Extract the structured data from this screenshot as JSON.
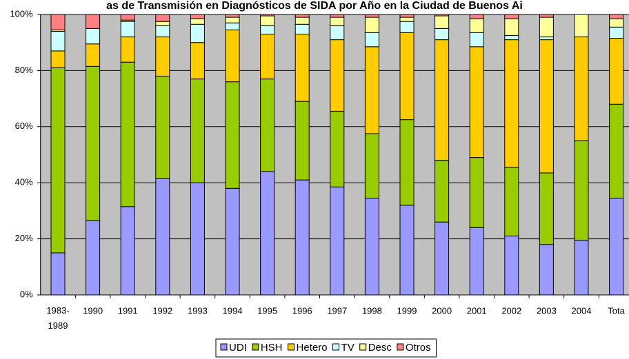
{
  "chart_data": {
    "type": "stacked_bar",
    "title": "as de Transmisión en Diagnósticos de SIDA por Año en la Ciudad de Buenos Ai",
    "categories": [
      "1983-1989",
      "1990",
      "1991",
      "1992",
      "1993",
      "1994",
      "1995",
      "1996",
      "1997",
      "1998",
      "1999",
      "2000",
      "2001",
      "2002",
      "2003",
      "2004",
      "Tota"
    ],
    "series": [
      {
        "name": "UDI",
        "color": "#9999ff",
        "values": [
          15,
          26.5,
          31.5,
          41.5,
          40,
          38,
          44,
          41,
          38.5,
          34.5,
          32,
          26,
          24,
          21,
          18,
          19.5,
          34.5
        ]
      },
      {
        "name": "HSH",
        "color": "#99cc00",
        "values": [
          66,
          55,
          51.5,
          36.5,
          37,
          38,
          33,
          28,
          27,
          23,
          30.5,
          22,
          25,
          24.5,
          25.5,
          35.5,
          33.5
        ]
      },
      {
        "name": "Hetero",
        "color": "#ffcc00",
        "values": [
          6,
          8,
          9,
          14,
          13,
          18.5,
          16,
          24,
          25.5,
          31,
          31,
          43,
          39.5,
          45.5,
          47.5,
          37,
          23.5
        ]
      },
      {
        "name": "TV",
        "color": "#ccffff",
        "values": [
          7,
          5.5,
          5.5,
          4,
          6.5,
          2.5,
          3,
          3.5,
          5,
          5,
          4,
          4,
          5,
          1.5,
          1,
          0,
          4
        ]
      },
      {
        "name": "Desc",
        "color": "#ffff99",
        "values": [
          0.5,
          0,
          0.5,
          1.5,
          2,
          2,
          3.5,
          2.5,
          3,
          5.5,
          1.5,
          4.5,
          5,
          6,
          7,
          8,
          3
        ]
      },
      {
        "name": "Otros",
        "color": "#ff8080",
        "values": [
          5.5,
          5,
          2,
          2.5,
          1.5,
          1,
          0.5,
          1,
          1,
          1,
          1,
          0.5,
          1.5,
          1.5,
          1,
          0,
          1.5
        ]
      }
    ],
    "ylim": [
      0,
      100
    ],
    "yticks": [
      {
        "value": 0,
        "label": "0%"
      },
      {
        "value": 20,
        "label": "20%"
      },
      {
        "value": 40,
        "label": "40%"
      },
      {
        "value": 60,
        "label": "60%"
      },
      {
        "value": 80,
        "label": "80%"
      },
      {
        "value": 100,
        "label": "100%"
      }
    ],
    "grid": true,
    "legend": "bottom"
  }
}
